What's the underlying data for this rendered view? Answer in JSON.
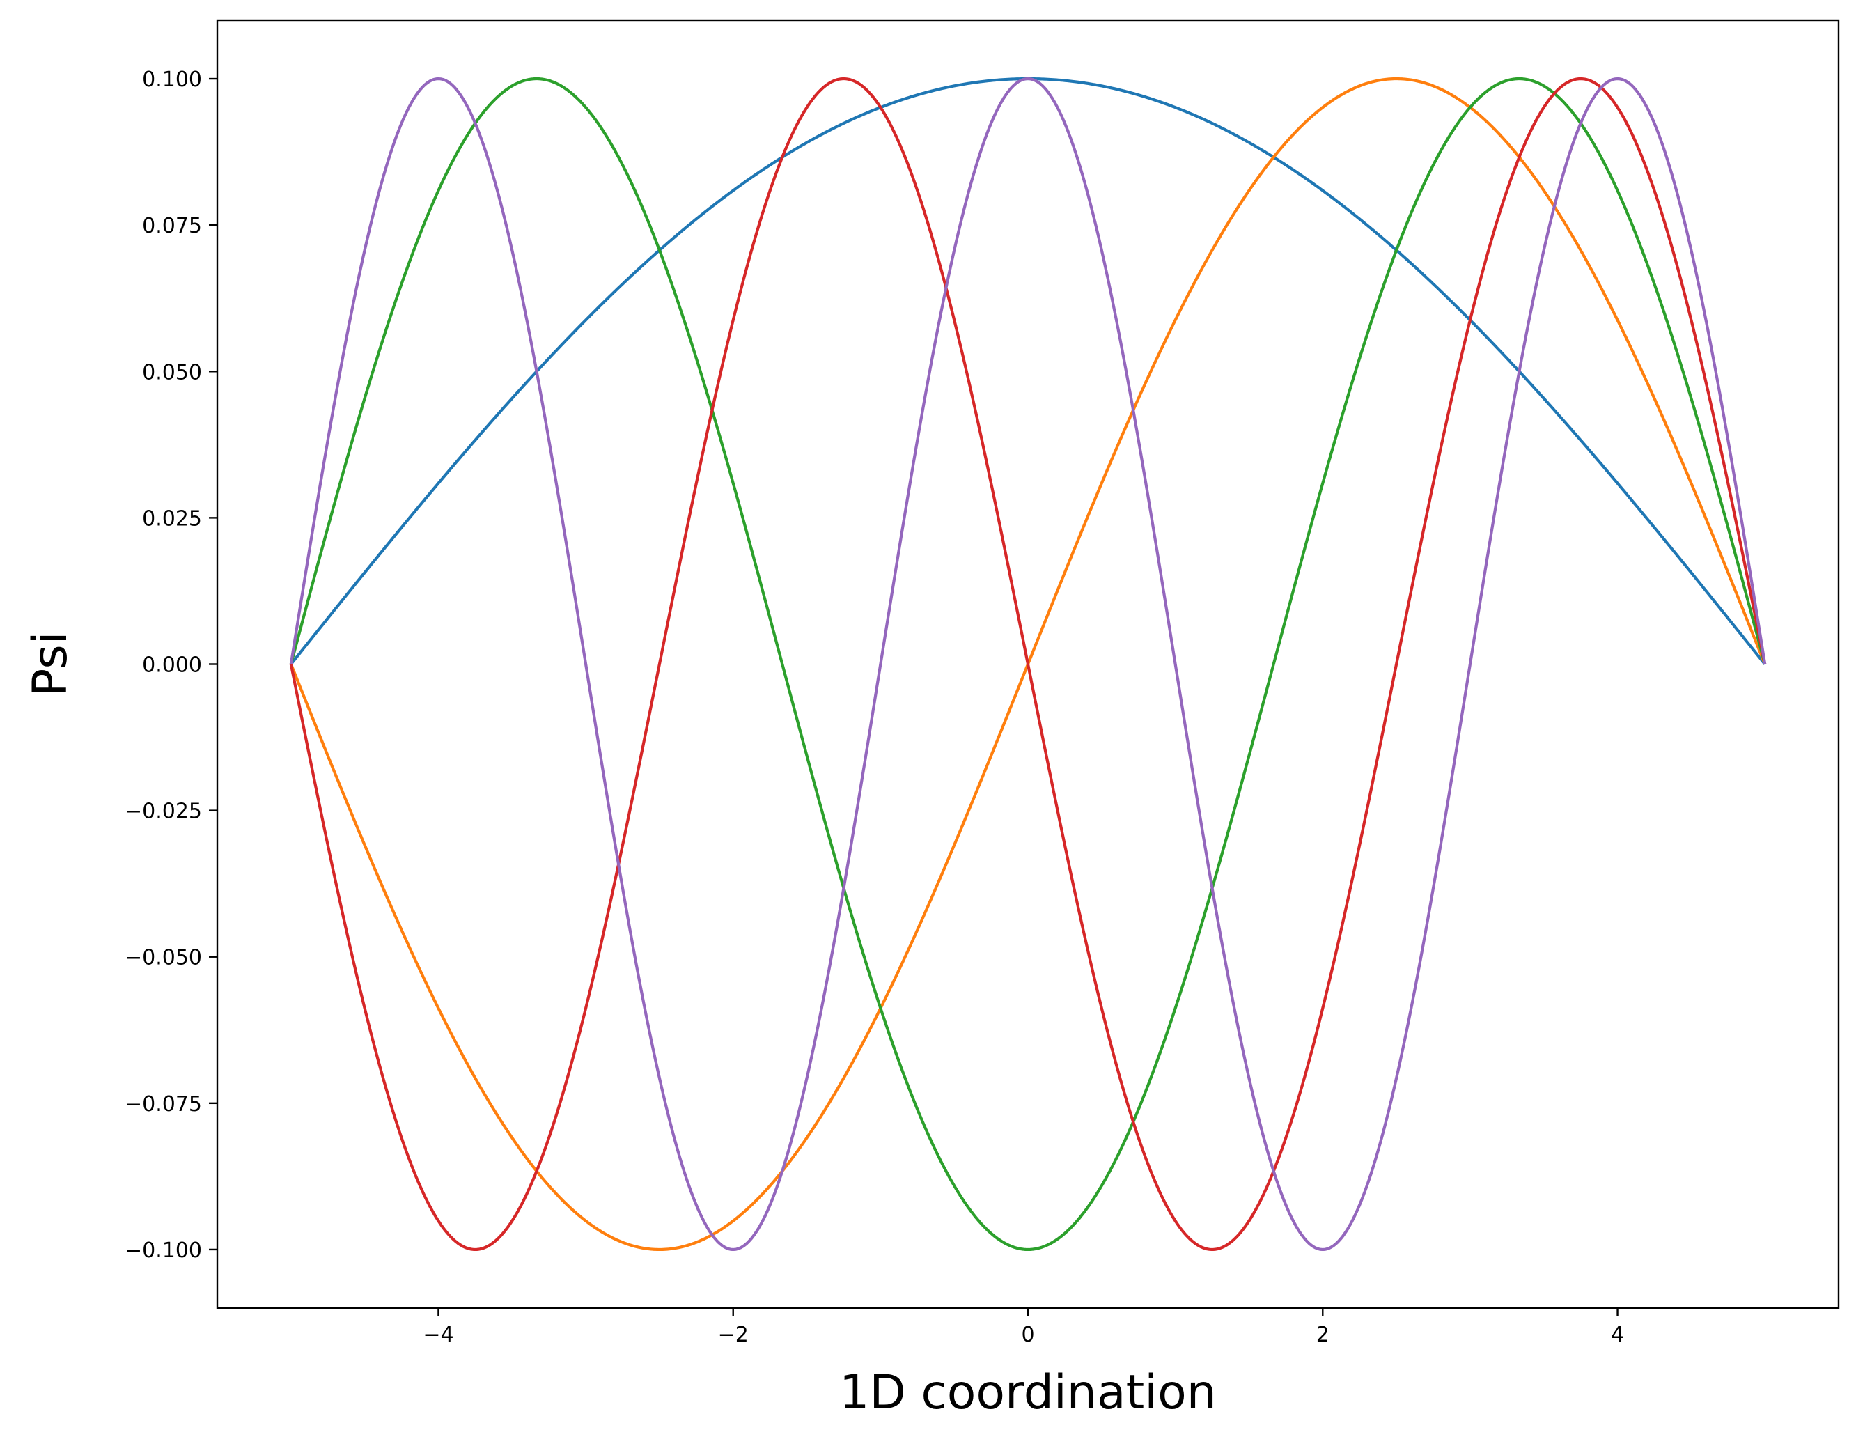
{
  "chart_data": {
    "type": "line",
    "title": "",
    "xlabel": "1D coordination",
    "ylabel": "Psi",
    "xlim": [
      -5.5,
      5.5
    ],
    "ylim": [
      -0.11,
      0.11
    ],
    "grid": false,
    "legend": "none",
    "x_range": [
      -5,
      5
    ],
    "x_ticks": [
      -4,
      -2,
      0,
      2,
      4
    ],
    "x_tick_labels": [
      "−4",
      "−2",
      "0",
      "2",
      "4"
    ],
    "y_ticks": [
      -0.1,
      -0.075,
      -0.05,
      -0.025,
      0.0,
      0.025,
      0.05,
      0.075,
      0.1
    ],
    "y_tick_labels": [
      "−0.100",
      "−0.075",
      "−0.050",
      "−0.025",
      "0.000",
      "0.025",
      "0.050",
      "0.075",
      "0.100"
    ],
    "amplitude": 0.1,
    "series": [
      {
        "n": 1,
        "shape": "cos",
        "color": "#1f77b4"
      },
      {
        "n": 2,
        "shape": "sin",
        "color": "#ff7f0e"
      },
      {
        "n": 3,
        "shape": "cos",
        "color": "#2ca02c"
      },
      {
        "n": 4,
        "shape": "sin",
        "color": "#d62728"
      },
      {
        "n": 5,
        "shape": "cos",
        "color": "#9467bd"
      }
    ]
  }
}
